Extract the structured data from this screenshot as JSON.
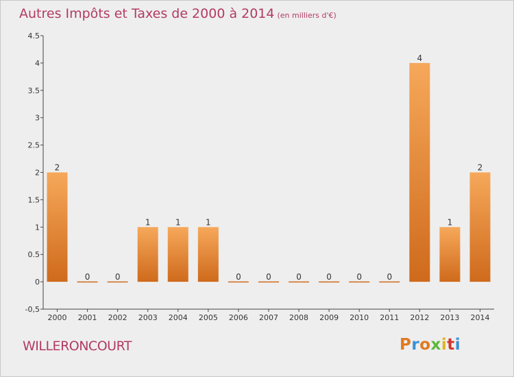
{
  "chart_data": {
    "type": "bar",
    "title": "Autres Impôts et Taxes de 2000 à 2014",
    "unit": "(en milliers d'€)",
    "categories": [
      "2000",
      "2001",
      "2002",
      "2003",
      "2004",
      "2005",
      "2006",
      "2007",
      "2008",
      "2009",
      "2010",
      "2011",
      "2012",
      "2013",
      "2014"
    ],
    "values": [
      2,
      0,
      0,
      1,
      1,
      1,
      0,
      0,
      0,
      0,
      0,
      0,
      4,
      1,
      2
    ],
    "data_labels": [
      "2",
      "0",
      "0",
      "1",
      "1",
      "1",
      "0",
      "0",
      "0",
      "0",
      "0",
      "0",
      "4",
      "1",
      "2"
    ],
    "ylim": [
      -0.5,
      4.5
    ],
    "yticks": [
      -0.5,
      0,
      0.5,
      1,
      1.5,
      2,
      2.5,
      3,
      3.5,
      4,
      4.5
    ],
    "ytick_labels": [
      "-0,5",
      "0",
      "0.5",
      "1",
      "1.5",
      "2",
      "2.5",
      "3",
      "3.5",
      "4",
      "4.5"
    ],
    "xlabel": "",
    "ylabel": "",
    "grid": false,
    "colors": {
      "bar_light": "#f6a85a",
      "bar_dark": "#cf6a1c",
      "axis": "#444444",
      "title": "#b23a64"
    }
  },
  "footer": {
    "commune": "WILLERONCOURT",
    "logo_letters": [
      "P",
      "r",
      "o",
      "x",
      "i",
      "t",
      "i"
    ],
    "logo_colors": [
      "#e07a1f",
      "#3b8fd4",
      "#e07a1f",
      "#5cb83a",
      "#e0b41f",
      "#d0362b",
      "#3b8fd4"
    ]
  }
}
